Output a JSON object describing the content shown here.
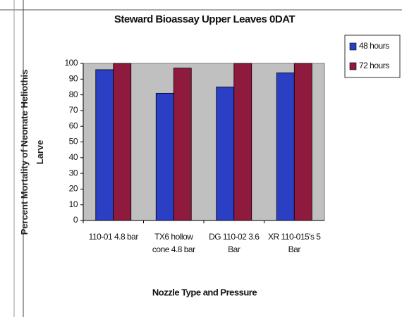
{
  "chart_data": {
    "type": "bar",
    "title": "Steward Bioassay Upper Leaves 0DAT",
    "y_label": "Percent Mortality of Neonate Heliothis Larve",
    "x_label": "Nozzle Type and Pressure",
    "categories": [
      "110-01 4.8 bar",
      "TX6 hollow cone 4.8 bar",
      "DG 110-02 3.6 Bar",
      "XR 110-015's 5 Bar"
    ],
    "series": [
      {
        "name": "48 hours",
        "color": "#2a3fc4",
        "values": [
          96,
          81,
          85,
          94
        ]
      },
      {
        "name": "72 hours",
        "color": "#8e1b3e",
        "values": [
          100,
          97,
          100,
          100
        ]
      }
    ],
    "ylim": [
      0,
      100
    ],
    "yticks": [
      0,
      10,
      20,
      30,
      40,
      50,
      60,
      70,
      80,
      90,
      100
    ],
    "grid": false,
    "legend": "right",
    "plot_background": "#c0c0c0"
  }
}
